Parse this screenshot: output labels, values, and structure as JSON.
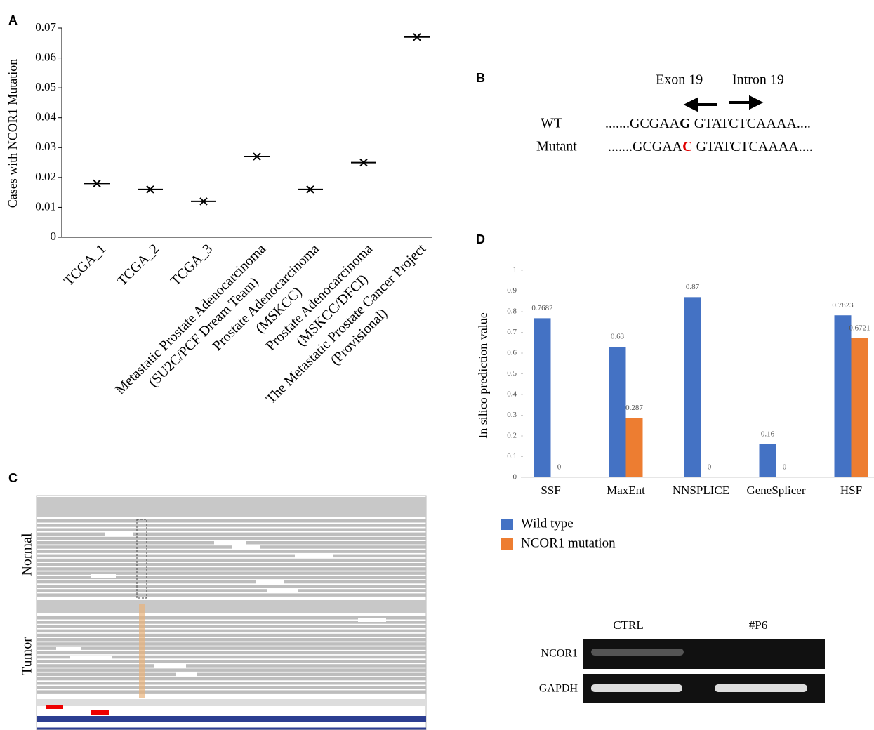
{
  "panels": {
    "a": "A",
    "b": "B",
    "c": "C",
    "d": "D"
  },
  "chart_data": [
    {
      "type": "marker",
      "ylabel": "Cases with  NCOR1 Mutation",
      "categories": [
        "TCGA_1",
        "TCGA_2",
        "TCGA_3",
        "Metastatic  Prostate Adenocarcinoma\n(SU2C/PCF Dream Team)",
        "Prostate Adenocarcinoma\n(MSKCC)",
        "Prostate Adenocarcinoma\n(MSKCC/DFCI)",
        "The Metastatic  Prostate Cancer Project\n(Provisional)"
      ],
      "values": [
        0.018,
        0.016,
        0.012,
        0.027,
        0.016,
        0.025,
        0.067
      ],
      "color": "#000000",
      "ylim": [
        0,
        0.07
      ],
      "yticks": [
        0,
        0.01,
        0.02,
        0.03,
        0.04,
        0.05,
        0.06,
        0.07
      ]
    },
    {
      "type": "bar",
      "ylabel": "In silico  prediction  value",
      "categories": [
        "SSF",
        "MaxEnt",
        "NNSPLICE",
        "GeneSplicer",
        "HSF"
      ],
      "series": [
        {
          "name": "Wild type",
          "color": "#4472c4",
          "values": [
            0.7682,
            0.63,
            0.87,
            0.16,
            0.7823
          ]
        },
        {
          "name": "NCOR1 mutation",
          "color": "#ed7d31",
          "values": [
            0,
            0.287,
            0,
            0,
            0.6721
          ]
        }
      ],
      "ylim": [
        0,
        1
      ],
      "yticks": [
        0,
        0.1,
        0.2,
        0.3,
        0.4,
        0.5,
        0.6,
        0.7,
        0.8,
        0.9,
        1
      ],
      "legend": "bottom-left"
    }
  ],
  "sequence": {
    "exon": "Exon 19",
    "intron": "Intron 19",
    "rows": [
      {
        "label": "WT",
        "left": ".......GCGAA",
        "base": "G",
        "right": " GTATCTCAAAA...."
      },
      {
        "label": "Mutant",
        "left": ".......GCGAA",
        "base": "C",
        "right": " GTATCTCAAAA...."
      }
    ]
  },
  "igv": {
    "tracks": [
      "Normal",
      "Tumor"
    ]
  },
  "gel": {
    "lanes": [
      "CTRL",
      "#P6"
    ],
    "rows": [
      "NCOR1",
      "GAPDH"
    ]
  }
}
